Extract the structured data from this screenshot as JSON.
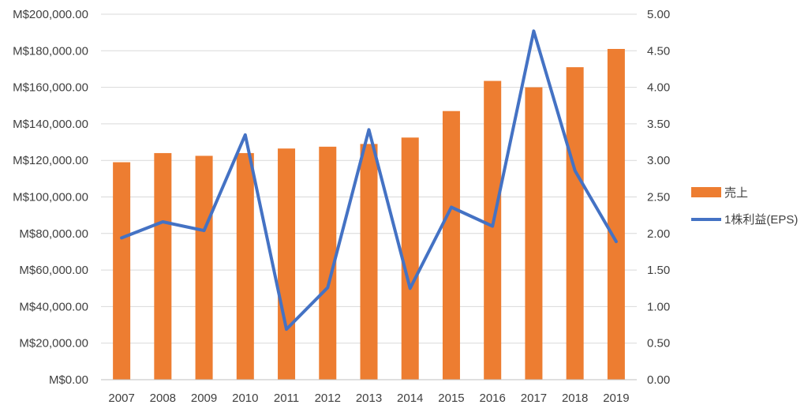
{
  "colors": {
    "bar": "#ED7D31",
    "line": "#4472C4",
    "grid": "#D9D9D9",
    "axis": "#BFBFBF",
    "text": "#404040"
  },
  "chart_data": {
    "type": "bar",
    "combo": "bar + line (secondary axis)",
    "title": "",
    "xlabel": "",
    "ylabel": "",
    "y2label": "",
    "categories": [
      "2007",
      "2008",
      "2009",
      "2010",
      "2011",
      "2012",
      "2013",
      "2014",
      "2015",
      "2016",
      "2017",
      "2018",
      "2019"
    ],
    "series": [
      {
        "name": "売上",
        "type": "bar",
        "axis": "primary",
        "values": [
          119000,
          124000,
          122500,
          124000,
          126500,
          127500,
          129000,
          132500,
          147000,
          163500,
          160000,
          171000,
          181000
        ]
      },
      {
        "name": "1株利益(EPS)",
        "type": "line",
        "axis": "secondary",
        "values": [
          1.94,
          2.16,
          2.04,
          3.35,
          0.69,
          1.26,
          3.42,
          1.25,
          2.36,
          2.1,
          4.77,
          2.86,
          1.89
        ]
      }
    ],
    "ylim": [
      0,
      200000
    ],
    "y_ticks": [
      "M$0.00",
      "M$20,000.00",
      "M$40,000.00",
      "M$60,000.00",
      "M$80,000.00",
      "M$100,000.00",
      "M$120,000.00",
      "M$140,000.00",
      "M$160,000.00",
      "M$180,000.00",
      "M$200,000.00"
    ],
    "y2lim": [
      0,
      5
    ],
    "y2_ticks": [
      "0.00",
      "0.50",
      "1.00",
      "1.50",
      "2.00",
      "2.50",
      "3.00",
      "3.50",
      "4.00",
      "4.50",
      "5.00"
    ],
    "grid": true,
    "legend": "right"
  }
}
